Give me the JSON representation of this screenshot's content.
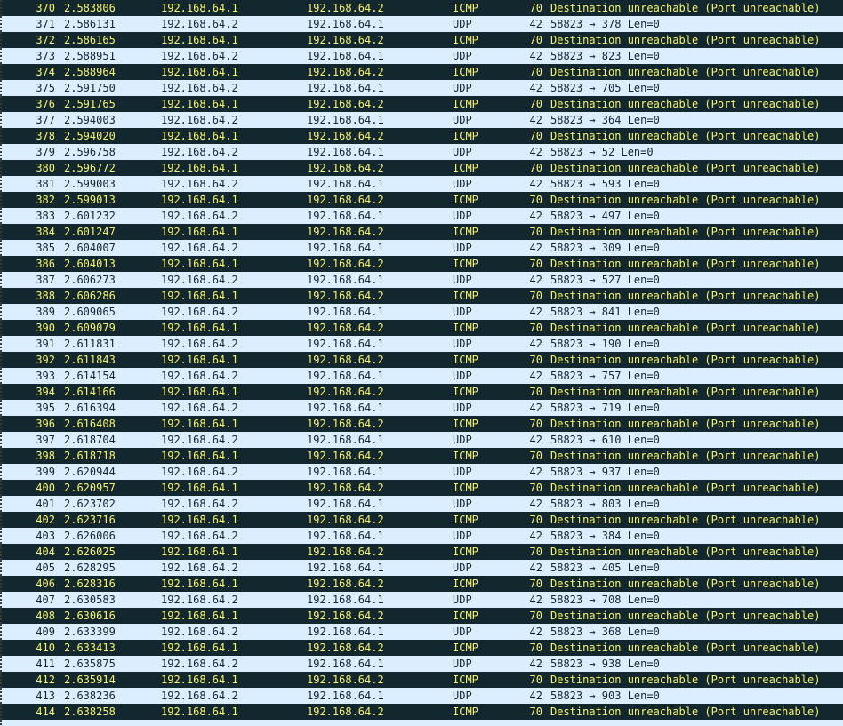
{
  "colors": {
    "icmp_bg": "#12272e",
    "icmp_fg": "#f7f36b",
    "udp_bg": "#daeeff",
    "udp_fg": "#12272e"
  },
  "packets": [
    {
      "no": "370",
      "time": "2.583806",
      "src": "192.168.64.1",
      "dst": "192.168.64.2",
      "proto": "ICMP",
      "len": "70",
      "info": "Destination unreachable (Port unreachable)"
    },
    {
      "no": "371",
      "time": "2.586131",
      "src": "192.168.64.2",
      "dst": "192.168.64.1",
      "proto": "UDP",
      "len": "42",
      "info": "58823 → 378 Len=0"
    },
    {
      "no": "372",
      "time": "2.586165",
      "src": "192.168.64.1",
      "dst": "192.168.64.2",
      "proto": "ICMP",
      "len": "70",
      "info": "Destination unreachable (Port unreachable)"
    },
    {
      "no": "373",
      "time": "2.588951",
      "src": "192.168.64.2",
      "dst": "192.168.64.1",
      "proto": "UDP",
      "len": "42",
      "info": "58823 → 823 Len=0"
    },
    {
      "no": "374",
      "time": "2.588964",
      "src": "192.168.64.1",
      "dst": "192.168.64.2",
      "proto": "ICMP",
      "len": "70",
      "info": "Destination unreachable (Port unreachable)"
    },
    {
      "no": "375",
      "time": "2.591750",
      "src": "192.168.64.2",
      "dst": "192.168.64.1",
      "proto": "UDP",
      "len": "42",
      "info": "58823 → 705 Len=0"
    },
    {
      "no": "376",
      "time": "2.591765",
      "src": "192.168.64.1",
      "dst": "192.168.64.2",
      "proto": "ICMP",
      "len": "70",
      "info": "Destination unreachable (Port unreachable)"
    },
    {
      "no": "377",
      "time": "2.594003",
      "src": "192.168.64.2",
      "dst": "192.168.64.1",
      "proto": "UDP",
      "len": "42",
      "info": "58823 → 364 Len=0"
    },
    {
      "no": "378",
      "time": "2.594020",
      "src": "192.168.64.1",
      "dst": "192.168.64.2",
      "proto": "ICMP",
      "len": "70",
      "info": "Destination unreachable (Port unreachable)"
    },
    {
      "no": "379",
      "time": "2.596758",
      "src": "192.168.64.2",
      "dst": "192.168.64.1",
      "proto": "UDP",
      "len": "42",
      "info": "58823 → 52 Len=0"
    },
    {
      "no": "380",
      "time": "2.596772",
      "src": "192.168.64.1",
      "dst": "192.168.64.2",
      "proto": "ICMP",
      "len": "70",
      "info": "Destination unreachable (Port unreachable)"
    },
    {
      "no": "381",
      "time": "2.599003",
      "src": "192.168.64.2",
      "dst": "192.168.64.1",
      "proto": "UDP",
      "len": "42",
      "info": "58823 → 593 Len=0"
    },
    {
      "no": "382",
      "time": "2.599013",
      "src": "192.168.64.1",
      "dst": "192.168.64.2",
      "proto": "ICMP",
      "len": "70",
      "info": "Destination unreachable (Port unreachable)"
    },
    {
      "no": "383",
      "time": "2.601232",
      "src": "192.168.64.2",
      "dst": "192.168.64.1",
      "proto": "UDP",
      "len": "42",
      "info": "58823 → 497 Len=0"
    },
    {
      "no": "384",
      "time": "2.601247",
      "src": "192.168.64.1",
      "dst": "192.168.64.2",
      "proto": "ICMP",
      "len": "70",
      "info": "Destination unreachable (Port unreachable)"
    },
    {
      "no": "385",
      "time": "2.604007",
      "src": "192.168.64.2",
      "dst": "192.168.64.1",
      "proto": "UDP",
      "len": "42",
      "info": "58823 → 309 Len=0"
    },
    {
      "no": "386",
      "time": "2.604013",
      "src": "192.168.64.1",
      "dst": "192.168.64.2",
      "proto": "ICMP",
      "len": "70",
      "info": "Destination unreachable (Port unreachable)"
    },
    {
      "no": "387",
      "time": "2.606273",
      "src": "192.168.64.2",
      "dst": "192.168.64.1",
      "proto": "UDP",
      "len": "42",
      "info": "58823 → 527 Len=0"
    },
    {
      "no": "388",
      "time": "2.606286",
      "src": "192.168.64.1",
      "dst": "192.168.64.2",
      "proto": "ICMP",
      "len": "70",
      "info": "Destination unreachable (Port unreachable)"
    },
    {
      "no": "389",
      "time": "2.609065",
      "src": "192.168.64.2",
      "dst": "192.168.64.1",
      "proto": "UDP",
      "len": "42",
      "info": "58823 → 841 Len=0"
    },
    {
      "no": "390",
      "time": "2.609079",
      "src": "192.168.64.1",
      "dst": "192.168.64.2",
      "proto": "ICMP",
      "len": "70",
      "info": "Destination unreachable (Port unreachable)"
    },
    {
      "no": "391",
      "time": "2.611831",
      "src": "192.168.64.2",
      "dst": "192.168.64.1",
      "proto": "UDP",
      "len": "42",
      "info": "58823 → 190 Len=0"
    },
    {
      "no": "392",
      "time": "2.611843",
      "src": "192.168.64.1",
      "dst": "192.168.64.2",
      "proto": "ICMP",
      "len": "70",
      "info": "Destination unreachable (Port unreachable)"
    },
    {
      "no": "393",
      "time": "2.614154",
      "src": "192.168.64.2",
      "dst": "192.168.64.1",
      "proto": "UDP",
      "len": "42",
      "info": "58823 → 757 Len=0"
    },
    {
      "no": "394",
      "time": "2.614166",
      "src": "192.168.64.1",
      "dst": "192.168.64.2",
      "proto": "ICMP",
      "len": "70",
      "info": "Destination unreachable (Port unreachable)"
    },
    {
      "no": "395",
      "time": "2.616394",
      "src": "192.168.64.2",
      "dst": "192.168.64.1",
      "proto": "UDP",
      "len": "42",
      "info": "58823 → 719 Len=0"
    },
    {
      "no": "396",
      "time": "2.616408",
      "src": "192.168.64.1",
      "dst": "192.168.64.2",
      "proto": "ICMP",
      "len": "70",
      "info": "Destination unreachable (Port unreachable)"
    },
    {
      "no": "397",
      "time": "2.618704",
      "src": "192.168.64.2",
      "dst": "192.168.64.1",
      "proto": "UDP",
      "len": "42",
      "info": "58823 → 610 Len=0"
    },
    {
      "no": "398",
      "time": "2.618718",
      "src": "192.168.64.1",
      "dst": "192.168.64.2",
      "proto": "ICMP",
      "len": "70",
      "info": "Destination unreachable (Port unreachable)"
    },
    {
      "no": "399",
      "time": "2.620944",
      "src": "192.168.64.2",
      "dst": "192.168.64.1",
      "proto": "UDP",
      "len": "42",
      "info": "58823 → 937 Len=0"
    },
    {
      "no": "400",
      "time": "2.620957",
      "src": "192.168.64.1",
      "dst": "192.168.64.2",
      "proto": "ICMP",
      "len": "70",
      "info": "Destination unreachable (Port unreachable)"
    },
    {
      "no": "401",
      "time": "2.623702",
      "src": "192.168.64.2",
      "dst": "192.168.64.1",
      "proto": "UDP",
      "len": "42",
      "info": "58823 → 803 Len=0"
    },
    {
      "no": "402",
      "time": "2.623716",
      "src": "192.168.64.1",
      "dst": "192.168.64.2",
      "proto": "ICMP",
      "len": "70",
      "info": "Destination unreachable (Port unreachable)"
    },
    {
      "no": "403",
      "time": "2.626006",
      "src": "192.168.64.2",
      "dst": "192.168.64.1",
      "proto": "UDP",
      "len": "42",
      "info": "58823 → 384 Len=0"
    },
    {
      "no": "404",
      "time": "2.626025",
      "src": "192.168.64.1",
      "dst": "192.168.64.2",
      "proto": "ICMP",
      "len": "70",
      "info": "Destination unreachable (Port unreachable)"
    },
    {
      "no": "405",
      "time": "2.628295",
      "src": "192.168.64.2",
      "dst": "192.168.64.1",
      "proto": "UDP",
      "len": "42",
      "info": "58823 → 405 Len=0"
    },
    {
      "no": "406",
      "time": "2.628316",
      "src": "192.168.64.1",
      "dst": "192.168.64.2",
      "proto": "ICMP",
      "len": "70",
      "info": "Destination unreachable (Port unreachable)"
    },
    {
      "no": "407",
      "time": "2.630583",
      "src": "192.168.64.2",
      "dst": "192.168.64.1",
      "proto": "UDP",
      "len": "42",
      "info": "58823 → 708 Len=0"
    },
    {
      "no": "408",
      "time": "2.630616",
      "src": "192.168.64.1",
      "dst": "192.168.64.2",
      "proto": "ICMP",
      "len": "70",
      "info": "Destination unreachable (Port unreachable)"
    },
    {
      "no": "409",
      "time": "2.633399",
      "src": "192.168.64.2",
      "dst": "192.168.64.1",
      "proto": "UDP",
      "len": "42",
      "info": "58823 → 368 Len=0"
    },
    {
      "no": "410",
      "time": "2.633413",
      "src": "192.168.64.1",
      "dst": "192.168.64.2",
      "proto": "ICMP",
      "len": "70",
      "info": "Destination unreachable (Port unreachable)"
    },
    {
      "no": "411",
      "time": "2.635875",
      "src": "192.168.64.2",
      "dst": "192.168.64.1",
      "proto": "UDP",
      "len": "42",
      "info": "58823 → 938 Len=0"
    },
    {
      "no": "412",
      "time": "2.635914",
      "src": "192.168.64.1",
      "dst": "192.168.64.2",
      "proto": "ICMP",
      "len": "70",
      "info": "Destination unreachable (Port unreachable)"
    },
    {
      "no": "413",
      "time": "2.638236",
      "src": "192.168.64.2",
      "dst": "192.168.64.1",
      "proto": "UDP",
      "len": "42",
      "info": "58823 → 903 Len=0"
    },
    {
      "no": "414",
      "time": "2.638258",
      "src": "192.168.64.1",
      "dst": "192.168.64.2",
      "proto": "ICMP",
      "len": "70",
      "info": "Destination unreachable (Port unreachable)"
    }
  ]
}
